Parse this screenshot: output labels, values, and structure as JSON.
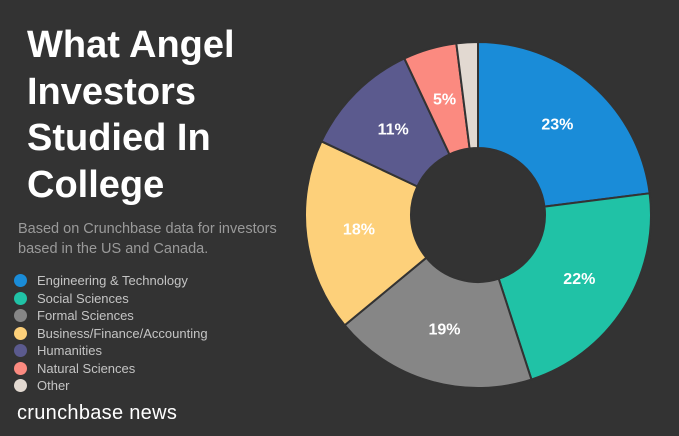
{
  "title_lines": [
    "What Angel",
    "Investors",
    "Studied In",
    "College"
  ],
  "subtitle_lines": [
    "Based on Crunchbase data for investors",
    "based in the US and Canada."
  ],
  "brand": "crunchbase news",
  "chart_data": {
    "type": "pie",
    "donut": true,
    "title": "What Angel Investors Studied In College",
    "subtitle": "Based on Crunchbase data for investors based in the US and Canada.",
    "legend_position": "left",
    "slices": [
      {
        "label": "Engineering & Technology",
        "value": 23,
        "display": "23%",
        "color": "#1a8cd8"
      },
      {
        "label": "Social Sciences",
        "value": 22,
        "display": "22%",
        "color": "#20c2a6"
      },
      {
        "label": "Formal Sciences",
        "value": 19,
        "display": "19%",
        "color": "#868686"
      },
      {
        "label": "Business/Finance/Accounting",
        "value": 18,
        "display": "18%",
        "color": "#fdd07a"
      },
      {
        "label": "Humanities",
        "value": 11,
        "display": "11%",
        "color": "#5b5a8e"
      },
      {
        "label": "Natural Sciences",
        "value": 5,
        "display": "5%",
        "color": "#fb8a80"
      },
      {
        "label": "Other",
        "value": 2,
        "display": "",
        "color": "#e2d9d1"
      }
    ]
  }
}
